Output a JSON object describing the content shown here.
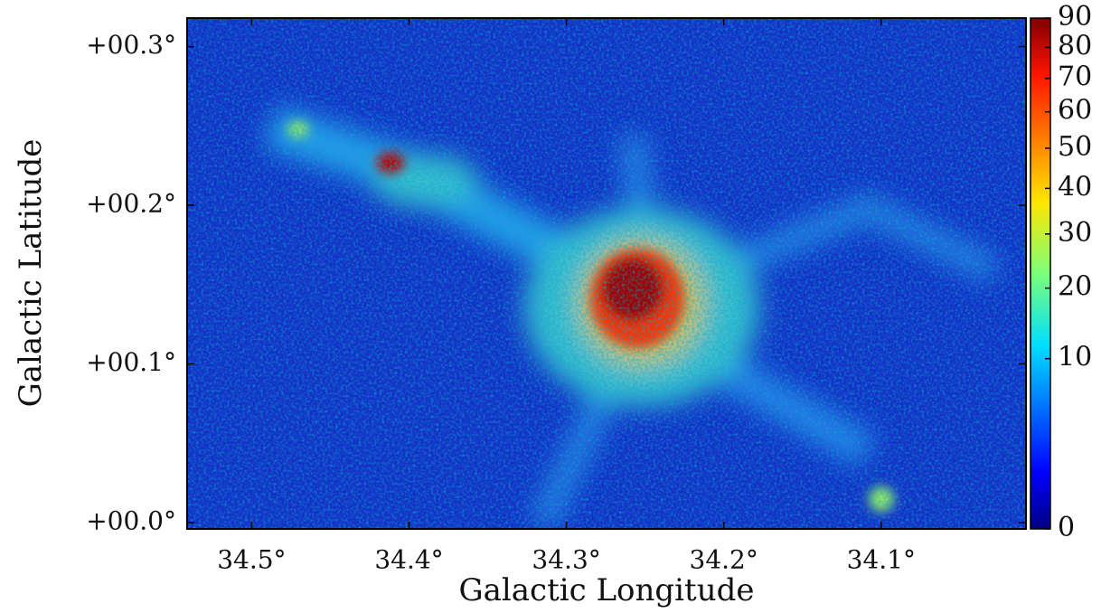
{
  "chart_data": {
    "type": "image",
    "x_label": "Galactic Longitude",
    "y_label": "Galactic Latitude",
    "xlim": [
      34.541,
      34.008
    ],
    "ylim": [
      -0.004,
      0.318
    ],
    "xticks": [
      {
        "value": 34.5,
        "label": "34.5°"
      },
      {
        "value": 34.4,
        "label": "34.4°"
      },
      {
        "value": 34.3,
        "label": "34.3°"
      },
      {
        "value": 34.2,
        "label": "34.2°"
      },
      {
        "value": 34.1,
        "label": "34.1°"
      }
    ],
    "yticks": [
      {
        "value": 0.0,
        "label": "+00.0°"
      },
      {
        "value": 0.1,
        "label": "+00.1°"
      },
      {
        "value": 0.2,
        "label": "+00.2°"
      },
      {
        "value": 0.3,
        "label": "+00.3°"
      }
    ],
    "colorbar": {
      "clim": [
        0,
        90
      ],
      "scale": "sqrt",
      "colormap": "jet",
      "ticks": [
        0,
        10,
        20,
        30,
        40,
        50,
        60,
        70,
        80,
        90
      ]
    }
  }
}
